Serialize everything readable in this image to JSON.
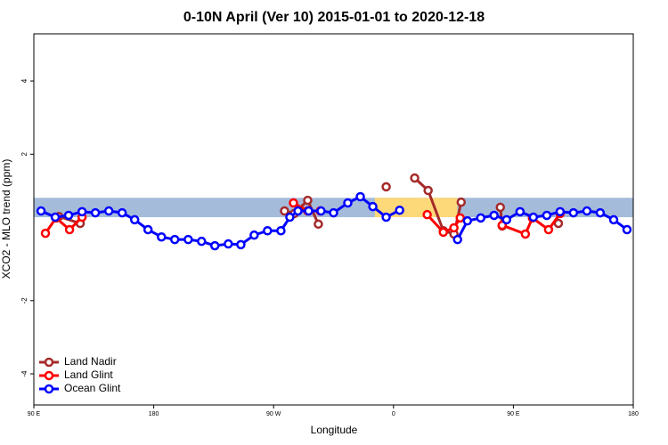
{
  "chart_data": {
    "type": "line",
    "title": "0-10N April (Ver 10)   2015-01-01 to 2020-12-18",
    "x_label": "Longitude",
    "y_label": "XCO2 - MLO trend (ppm)",
    "xlim": [
      90,
      540
    ],
    "ylim": [
      -4.85,
      5.29
    ],
    "xticks": [
      {
        "value": 90,
        "label": "90 E"
      },
      {
        "value": 180,
        "label": "180"
      },
      {
        "value": 270,
        "label": "90 W"
      },
      {
        "value": 360,
        "label": "0"
      },
      {
        "value": 450,
        "label": "90 E"
      },
      {
        "value": 540,
        "label": "180"
      }
    ],
    "yticks": [
      -4,
      -2,
      2,
      4
    ],
    "band": [
      0.28,
      0.81
    ],
    "band_color": "#a4bbda",
    "highlight_x": [
      346,
      408
    ],
    "highlight_color": "#fed97a",
    "legend": "bottom-left",
    "series": [
      {
        "name": "Land Nadir",
        "color": "#a52a2a",
        "x": [
          108.8,
          124.8,
          200,
          278.2,
          285.5,
          295.6,
          303.6,
          320,
          354.5,
          370,
          375.9,
          386.0,
          397.4,
          405.4,
          410.8,
          420,
          440.2,
          441.6,
          450,
          483.8
        ],
        "values": [
          0.3,
          0.11,
          null,
          0.45,
          0.38,
          0.74,
          0.09,
          null,
          1.11,
          null,
          1.35,
          1.01,
          -0.09,
          -0.18,
          0.69,
          null,
          0.55,
          0.04,
          null,
          0.11
        ]
      },
      {
        "name": "Land Glint",
        "color": "#ff0000",
        "x": [
          98.7,
          106.7,
          116.8,
          126.2,
          200,
          284.9,
          295.6,
          305.0,
          390,
          385.3,
          397.4,
          405.4,
          410.1,
          420,
          441.6,
          459.0,
          464.3,
          476.4,
          485.1
        ],
        "values": [
          -0.16,
          0.26,
          -0.06,
          0.28,
          null,
          0.67,
          0.45,
          0.45,
          null,
          0.35,
          -0.13,
          -0.01,
          0.26,
          null,
          0.06,
          -0.18,
          0.26,
          -0.06,
          0.38
        ]
      },
      {
        "name": "Ocean Glint",
        "color": "#0000ff",
        "x": [
          95.4,
          106.1,
          116.1,
          126.2,
          136.2,
          146.3,
          156.3,
          165.7,
          175.7,
          185.8,
          195.8,
          205.9,
          215.9,
          225.9,
          236.0,
          245.4,
          255.4,
          265.4,
          275.5,
          282.2,
          288.3,
          296.3,
          305.6,
          315.0,
          325.7,
          335.1,
          344.5,
          354.5,
          364.6,
          386,
          408.1,
          415.5,
          425.5,
          435.5,
          444.9,
          455.0,
          465.0,
          475.1,
          485.1,
          495.1,
          505.2,
          515.2,
          525.3,
          535.3
        ],
        "values": [
          0.45,
          0.28,
          0.33,
          0.43,
          0.4,
          0.45,
          0.4,
          0.21,
          -0.06,
          -0.26,
          -0.33,
          -0.33,
          -0.38,
          -0.5,
          -0.45,
          -0.47,
          -0.21,
          -0.09,
          -0.09,
          0.28,
          0.45,
          0.45,
          0.45,
          0.4,
          0.67,
          0.84,
          0.57,
          0.28,
          0.47,
          null,
          -0.33,
          0.18,
          0.26,
          0.33,
          0.21,
          0.43,
          0.28,
          0.33,
          0.43,
          0.4,
          0.45,
          0.4,
          0.21,
          -0.06
        ]
      }
    ]
  }
}
